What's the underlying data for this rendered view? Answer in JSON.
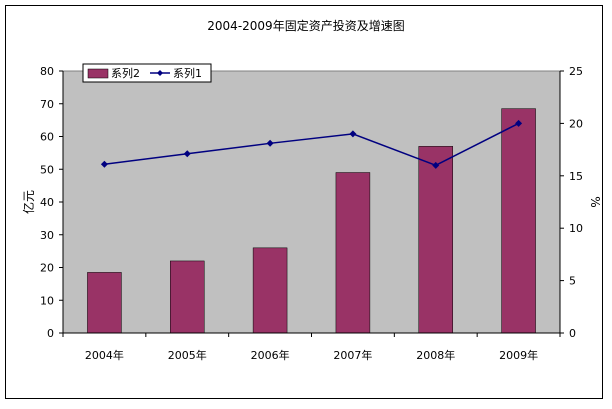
{
  "chart_data": {
    "type": "bar",
    "title": "2004-2009年固定资产投资及增速图",
    "categories": [
      "2004年",
      "2005年",
      "2006年",
      "2007年",
      "2008年",
      "2009年"
    ],
    "series": [
      {
        "name": "系列2",
        "type": "bar",
        "axis": "left",
        "values": [
          18.5,
          22,
          26,
          49,
          57,
          68.5
        ],
        "color": "#993366"
      },
      {
        "name": "系列1",
        "type": "line",
        "axis": "right",
        "values": [
          16.1,
          17.1,
          18.1,
          19,
          16,
          20
        ],
        "color": "#000080"
      }
    ],
    "ylabel": "亿元",
    "y2label": "%",
    "ylim": [
      0,
      80
    ],
    "y2lim": [
      0,
      25
    ],
    "yticks": [
      "0",
      "10",
      "20",
      "30",
      "40",
      "50",
      "60",
      "70",
      "80"
    ],
    "y2ticks": [
      "0",
      "5",
      "10",
      "15",
      "20",
      "25"
    ],
    "plot_background": "#c0c0c0",
    "grid": false,
    "legend": "top-left"
  }
}
